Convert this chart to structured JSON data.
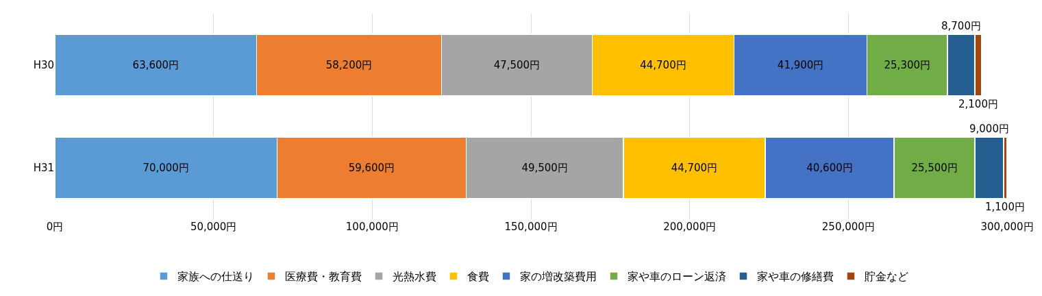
{
  "chart_data": {
    "type": "bar",
    "orientation": "horizontal",
    "stacked": true,
    "categories": [
      "H30",
      "H31"
    ],
    "xlim": [
      0,
      300000
    ],
    "xticks": [
      {
        "value": 0,
        "label": "0円"
      },
      {
        "value": 50000,
        "label": "50,000円"
      },
      {
        "value": 100000,
        "label": "100,000円"
      },
      {
        "value": 150000,
        "label": "150,000円"
      },
      {
        "value": 200000,
        "label": "200,000円"
      },
      {
        "value": 250000,
        "label": "250,000円"
      },
      {
        "value": 300000,
        "label": "300,000円"
      }
    ],
    "grid": "x",
    "legend": "bottom",
    "series": [
      {
        "name": "家族への仕送り",
        "color": "#5b9bd5",
        "values": [
          63600,
          70000
        ],
        "value_labels": [
          "63,600円",
          "70,000円"
        ]
      },
      {
        "name": "医療費・教育費",
        "color": "#ed7d31",
        "values": [
          58200,
          59600
        ],
        "value_labels": [
          "58,200円",
          "59,600円"
        ]
      },
      {
        "name": "光熱水費",
        "color": "#a5a5a5",
        "values": [
          47500,
          49500
        ],
        "value_labels": [
          "47,500円",
          "49,500円"
        ]
      },
      {
        "name": "食費",
        "color": "#ffc000",
        "values": [
          44700,
          44700
        ],
        "value_labels": [
          "44,700円",
          "44,700円"
        ]
      },
      {
        "name": "家の増改築費用",
        "color": "#4472c4",
        "values": [
          41900,
          40600
        ],
        "value_labels": [
          "41,900円",
          "40,600円"
        ]
      },
      {
        "name": "家や車のローン返済",
        "color": "#70ad47",
        "values": [
          25300,
          25500
        ],
        "value_labels": [
          "25,300円",
          "25,500円"
        ]
      },
      {
        "name": "家や車の修繕費",
        "color": "#255e91",
        "values": [
          8700,
          9000
        ],
        "value_labels": [
          "8,700円",
          "9,000円"
        ]
      },
      {
        "name": "貯金など",
        "color": "#9e480e",
        "values": [
          2100,
          1100
        ],
        "value_labels": [
          "2,100円",
          "1,100円"
        ]
      }
    ]
  }
}
